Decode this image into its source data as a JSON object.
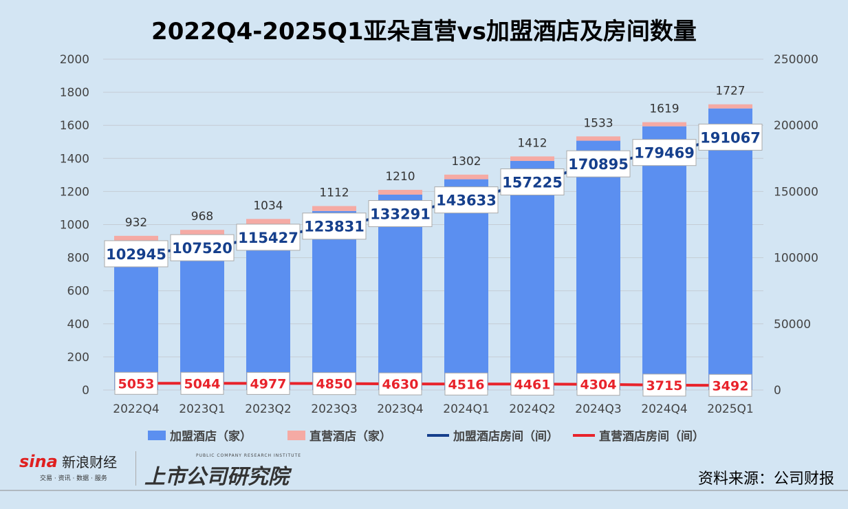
{
  "chart_data": {
    "type": "bar+line",
    "title": "2022Q4-2025Q1亚朵直营vs加盟酒店及房间数量",
    "categories": [
      "2022Q4",
      "2023Q1",
      "2023Q2",
      "2023Q3",
      "2023Q4",
      "2024Q1",
      "2024Q2",
      "2024Q3",
      "2024Q4",
      "2025Q1"
    ],
    "y_left": {
      "range": [
        0,
        2000
      ],
      "ticks": [
        0,
        200,
        400,
        600,
        800,
        1000,
        1200,
        1400,
        1600,
        1800,
        2000
      ]
    },
    "y_right": {
      "range": [
        0,
        250000
      ],
      "ticks": [
        0,
        50000,
        100000,
        150000,
        200000,
        250000
      ]
    },
    "grid": true,
    "legend_position": "bottom",
    "totals": [
      932,
      968,
      1034,
      1112,
      1210,
      1302,
      1412,
      1533,
      1619,
      1727
    ],
    "series": [
      {
        "name": "加盟酒店（家）",
        "type": "bar",
        "axis": "left",
        "color": "#5b8ff0",
        "values": [
          898,
          935,
          1003,
          1082,
          1181,
          1274,
          1385,
          1507,
          1594,
          1702
        ]
      },
      {
        "name": "直营酒店（家）",
        "type": "bar",
        "axis": "left",
        "color": "#f5aaa4",
        "values": [
          34,
          33,
          31,
          30,
          29,
          28,
          27,
          26,
          25,
          25
        ]
      },
      {
        "name": "加盟酒店房间（间）",
        "type": "line",
        "axis": "right",
        "color": "#153f8c",
        "values": [
          102945,
          107520,
          115427,
          123831,
          133291,
          143633,
          157225,
          170895,
          179469,
          191067
        ]
      },
      {
        "name": "直营酒店房间（间）",
        "type": "line",
        "axis": "right",
        "color": "#e8232b",
        "values": [
          5053,
          5044,
          4977,
          4850,
          4630,
          4516,
          4461,
          4304,
          3715,
          3492
        ]
      }
    ]
  },
  "source": "资料来源：公司财报",
  "logos": {
    "sina": "sina新浪财经",
    "sina_sub": "交易 · 资讯 · 数据 · 服务",
    "institute": "上市公司研究院",
    "institute_sub": "PUBLIC COMPANY RESEARCH INSTITUTE"
  }
}
